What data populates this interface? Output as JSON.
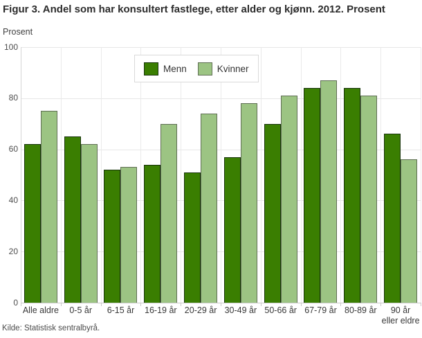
{
  "title": "Figur 3. Andel som har konsultert fastlege, etter alder og kjønn. 2012. Prosent",
  "y_axis_unit": "Prosent",
  "source": "Kilde: Statistisk sentralbyrå.",
  "colors": {
    "menn": "#3a7e01",
    "kvinner": "#9cc483",
    "menn_border": "#17330b",
    "kvinner_border": "#5f6e54",
    "gridline": "#e7e7e7",
    "axis": "#c9c9c9"
  },
  "chart_data": {
    "type": "bar",
    "title": "Figur 3. Andel som har konsultert fastlege, etter alder og kjønn. 2012. Prosent",
    "xlabel": "",
    "ylabel": "Prosent",
    "ylim": [
      0,
      100
    ],
    "yticks": [
      0,
      20,
      40,
      60,
      80,
      100
    ],
    "grid": true,
    "legend_position": "top-center",
    "categories": [
      "Alle aldre",
      "0-5 år",
      "6-15 år",
      "16-19 år",
      "20-29 år",
      "30-49 år",
      "50-66 år",
      "67-79 år",
      "80-89 år",
      "90 år\neller eldre"
    ],
    "series": [
      {
        "name": "Menn",
        "color": "#3a7e01",
        "values": [
          62,
          65,
          52,
          54,
          51,
          57,
          70,
          84,
          84,
          66
        ]
      },
      {
        "name": "Kvinner",
        "color": "#9cc483",
        "values": [
          75,
          62,
          53,
          70,
          74,
          78,
          81,
          87,
          81,
          56
        ]
      }
    ]
  }
}
